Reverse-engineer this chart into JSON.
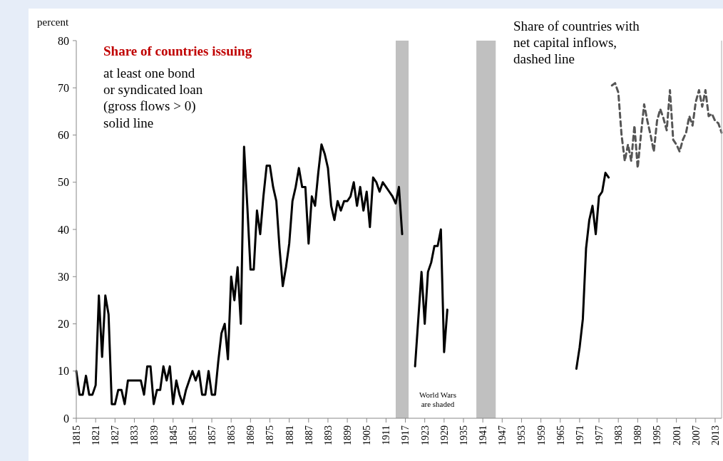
{
  "chart_data": {
    "type": "line",
    "ylabel": "percent",
    "annotations": [
      "Share of countries issuing",
      "at least one bond\nor syndicated loan\n(gross flows > 0)\nsolid line",
      "Share of countries with\nnet capital inflows,\ndashed line",
      "World Wars\nare shaded"
    ],
    "xlim": [
      1815,
      2015
    ],
    "xticks": [
      1815,
      1821,
      1827,
      1833,
      1839,
      1845,
      1851,
      1857,
      1863,
      1869,
      1875,
      1881,
      1887,
      1893,
      1899,
      1905,
      1911,
      1917,
      1923,
      1929,
      1935,
      1941,
      1947,
      1953,
      1959,
      1965,
      1971,
      1977,
      1983,
      1989,
      1995,
      2001,
      2007,
      2013
    ],
    "ylim": [
      0,
      80
    ],
    "yticks": [
      0,
      10,
      20,
      30,
      40,
      50,
      60,
      70,
      80
    ],
    "grid": false,
    "bands": [
      {
        "axis": "x",
        "from": 1914,
        "to": 1918,
        "color": "#c0c0c0"
      },
      {
        "axis": "x",
        "from": 1939,
        "to": 1945,
        "color": "#c0c0c0"
      }
    ],
    "series": [
      {
        "color": "#000000",
        "line_style": "solid",
        "x": [
          1815,
          1816,
          1817,
          1818,
          1819,
          1820,
          1821,
          1822,
          1823,
          1824,
          1825,
          1826,
          1827,
          1828,
          1829,
          1830,
          1831,
          1832,
          1833,
          1834,
          1835,
          1836,
          1837,
          1838,
          1839,
          1840,
          1841,
          1842,
          1843,
          1844,
          1845,
          1846,
          1847,
          1848,
          1849,
          1850,
          1851,
          1852,
          1853,
          1854,
          1855,
          1856,
          1857,
          1858,
          1859,
          1860,
          1861,
          1862,
          1863,
          1864,
          1865,
          1866,
          1867,
          1868,
          1869,
          1870,
          1871,
          1872,
          1873,
          1874,
          1875,
          1876,
          1877,
          1878,
          1879,
          1880,
          1881,
          1882,
          1883,
          1884,
          1885,
          1886,
          1887,
          1888,
          1889,
          1890,
          1891,
          1892,
          1893,
          1894,
          1895,
          1896,
          1897,
          1898,
          1899,
          1900,
          1901,
          1902,
          1903,
          1904,
          1905,
          1906,
          1907,
          1908,
          1909,
          1910,
          1911,
          1912,
          1913,
          1914,
          1915,
          1916,
          1920,
          1922,
          1923,
          1924,
          1925,
          1926,
          1927,
          1928,
          1929,
          1930,
          1970,
          1971,
          1972,
          1973,
          1974,
          1975,
          1976,
          1977,
          1978,
          1979,
          1980
        ],
        "values": [
          10,
          5,
          5,
          9,
          5,
          5,
          7,
          26,
          13,
          26,
          22,
          3,
          3,
          6,
          6,
          3,
          8,
          8,
          8,
          8,
          8,
          5,
          11,
          11,
          3,
          6,
          6,
          11,
          8,
          11,
          3,
          8,
          5,
          3,
          6,
          8,
          10,
          8,
          10,
          5,
          5,
          10,
          5,
          5,
          12,
          18,
          20,
          12.5,
          30,
          25,
          32,
          20,
          57.5,
          45,
          31.5,
          31.5,
          44,
          39,
          47,
          53.5,
          53.5,
          49,
          46,
          36,
          28,
          32,
          37,
          46,
          49,
          53,
          49,
          49,
          37,
          47,
          45,
          52,
          58,
          56,
          53,
          45,
          42,
          46,
          44,
          46,
          46,
          47,
          50,
          45,
          49,
          44,
          48,
          40.5,
          51,
          50,
          48,
          50,
          49,
          48,
          47,
          45.5,
          49,
          39,
          11,
          31,
          20,
          31,
          33,
          36.5,
          36.5,
          40,
          14,
          23,
          10.5,
          15,
          21,
          36,
          42,
          45,
          39,
          47,
          48,
          52,
          51
        ]
      },
      {
        "color": "#555555",
        "line_style": "dashed",
        "x": [
          1981,
          1982,
          1983,
          1984,
          1985,
          1986,
          1987,
          1988,
          1989,
          1990,
          1991,
          1992,
          1993,
          1994,
          1995,
          1996,
          1997,
          1998,
          1999,
          2000,
          2001,
          2002,
          2003,
          2004,
          2005,
          2006,
          2007,
          2008,
          2009,
          2010,
          2011,
          2012,
          2013,
          2014,
          2015
        ],
        "values": [
          70.5,
          71,
          69,
          60,
          54.5,
          58,
          54.5,
          62,
          53,
          60,
          66.5,
          63,
          60,
          56.5,
          63,
          65.5,
          63.5,
          61,
          69.5,
          59,
          58,
          56.5,
          59,
          60.5,
          64,
          62,
          67,
          69.5,
          66,
          69.5,
          64,
          64.5,
          63,
          62.5,
          60.5
        ]
      }
    ]
  }
}
